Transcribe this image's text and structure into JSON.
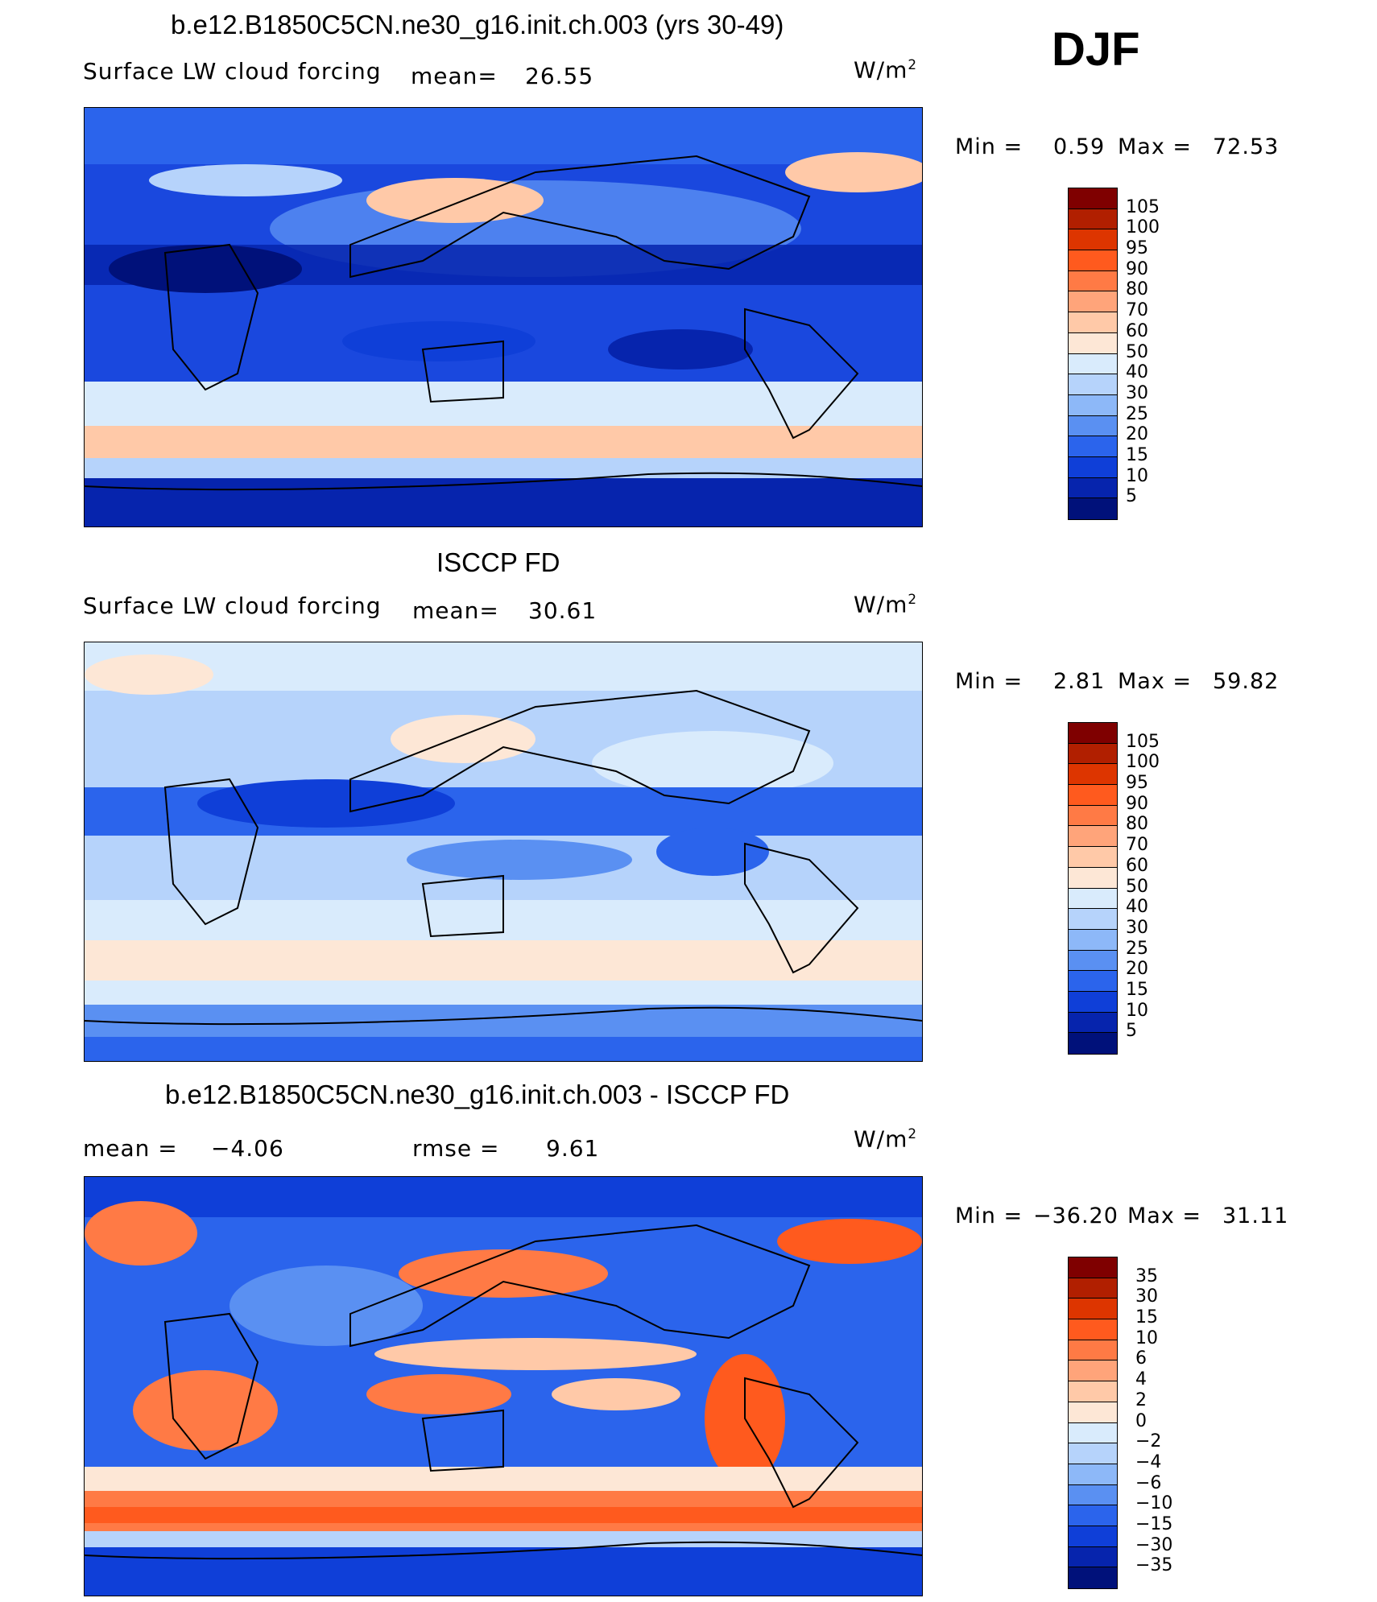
{
  "season": "DJF",
  "panels": [
    {
      "title": "b.e12.B1850C5CN.ne30_g16.init.ch.003 (yrs 30-49)",
      "left_label": "Surface LW cloud forcing",
      "stat_label": "mean=",
      "stat_value": "26.55",
      "units": "W/m",
      "units_sup": "2",
      "min_label": "Min =",
      "min_value": "0.59",
      "max_label": "Max =",
      "max_value": "72.53",
      "colorbar_labels": [
        "105",
        "100",
        "95",
        "90",
        "80",
        "70",
        "60",
        "50",
        "40",
        "30",
        "25",
        "20",
        "15",
        "10",
        "5"
      ]
    },
    {
      "title": "ISCCP FD",
      "left_label": "Surface LW cloud forcing",
      "stat_label": "mean=",
      "stat_value": "30.61",
      "units": "W/m",
      "units_sup": "2",
      "min_label": "Min =",
      "min_value": "2.81",
      "max_label": "Max =",
      "max_value": "59.82",
      "colorbar_labels": [
        "105",
        "100",
        "95",
        "90",
        "80",
        "70",
        "60",
        "50",
        "40",
        "30",
        "25",
        "20",
        "15",
        "10",
        "5"
      ]
    },
    {
      "title": "b.e12.B1850C5CN.ne30_g16.init.ch.003 - ISCCP FD",
      "mean_label": "mean =",
      "mean_value": "−4.06",
      "rmse_label": "rmse =",
      "rmse_value": "9.61",
      "units": "W/m",
      "units_sup": "2",
      "min_label": "Min =",
      "min_value": "−36.20",
      "max_label": "Max =",
      "max_value": "31.11",
      "colorbar_labels": [
        "35",
        "30",
        "15",
        "10",
        "6",
        "4",
        "2",
        "0",
        "−2",
        "−4",
        "−6",
        "−10",
        "−15",
        "−30",
        "−35"
      ]
    }
  ],
  "colorbar_colors": [
    "#7f0000",
    "#b11f00",
    "#dd3500",
    "#ff5a1e",
    "#ff7a45",
    "#ffa47a",
    "#ffc9a8",
    "#fde7d6",
    "#d9ebfc",
    "#b6d3fb",
    "#8db8f8",
    "#5a90f2",
    "#2b64ec",
    "#0f3fd8",
    "#0624ad",
    "#00117a"
  ]
}
